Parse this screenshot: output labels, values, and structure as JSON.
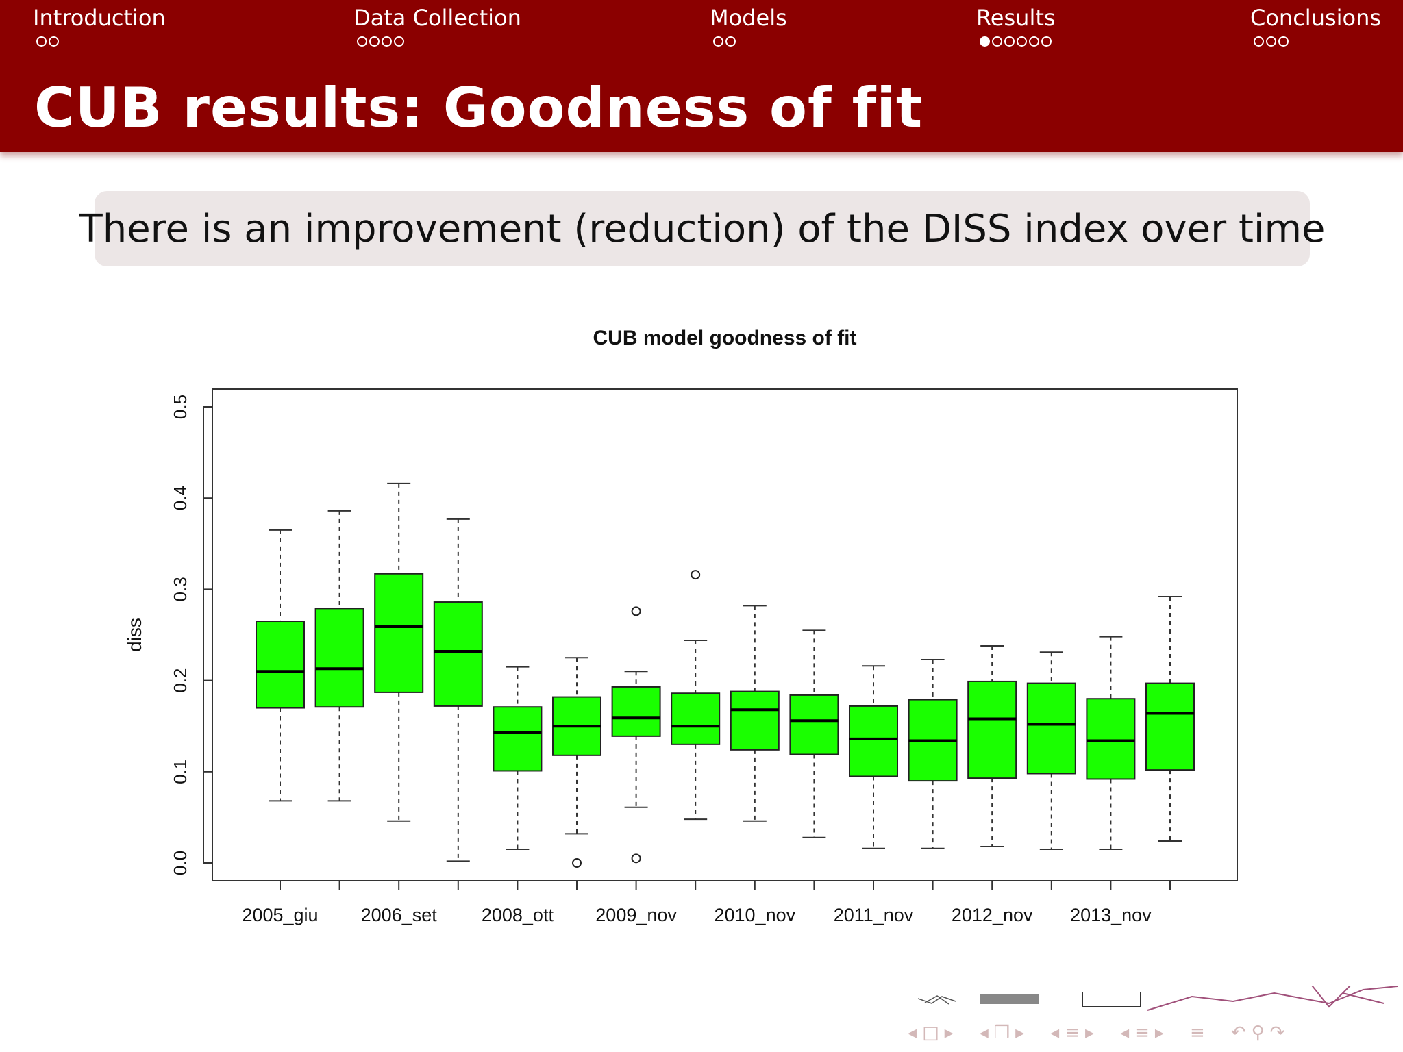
{
  "header": {
    "sections": [
      {
        "label": "Introduction",
        "dots": 2,
        "current": -1
      },
      {
        "label": "Data Collection",
        "dots": 4,
        "current": -1
      },
      {
        "label": "Models",
        "dots": 2,
        "current": -1
      },
      {
        "label": "Results",
        "dots": 6,
        "current": 0
      },
      {
        "label": "Conclusions",
        "dots": 3,
        "current": -1
      }
    ],
    "title": "CUB results: Goodness of fit"
  },
  "callout": {
    "text": "There is an improvement (reduction) of the DISS index over time"
  },
  "colors": {
    "header_bg": "#8b0000",
    "box_fill": "#1aff00",
    "callout_bg": "#ece6e6"
  },
  "chart_data": {
    "type": "boxplot",
    "title": "CUB model goodness of fit",
    "xlabel": "",
    "ylabel": "diss",
    "ylim": [
      0.0,
      0.5
    ],
    "yticks": [
      "0.0",
      "0.1",
      "0.2",
      "0.3",
      "0.4",
      "0.5"
    ],
    "categories": [
      "2005_giu",
      "",
      "2006_set",
      "",
      "2008_ott",
      "",
      "2009_nov",
      "",
      "2010_nov",
      "",
      "2011_nov",
      "",
      "2012_nov",
      "",
      "2013_nov",
      ""
    ],
    "boxes": [
      {
        "min": 0.068,
        "q1": 0.17,
        "median": 0.21,
        "q3": 0.265,
        "max": 0.365,
        "outliers": []
      },
      {
        "min": 0.068,
        "q1": 0.171,
        "median": 0.213,
        "q3": 0.279,
        "max": 0.386,
        "outliers": []
      },
      {
        "min": 0.046,
        "q1": 0.187,
        "median": 0.259,
        "q3": 0.317,
        "max": 0.416,
        "outliers": []
      },
      {
        "min": 0.002,
        "q1": 0.172,
        "median": 0.232,
        "q3": 0.286,
        "max": 0.377,
        "outliers": []
      },
      {
        "min": 0.015,
        "q1": 0.101,
        "median": 0.143,
        "q3": 0.171,
        "max": 0.215,
        "outliers": []
      },
      {
        "min": 0.032,
        "q1": 0.118,
        "median": 0.15,
        "q3": 0.182,
        "max": 0.225,
        "outliers": [
          0.0
        ]
      },
      {
        "min": 0.061,
        "q1": 0.139,
        "median": 0.159,
        "q3": 0.193,
        "max": 0.21,
        "outliers": [
          0.276,
          0.005
        ]
      },
      {
        "min": 0.048,
        "q1": 0.13,
        "median": 0.15,
        "q3": 0.186,
        "max": 0.244,
        "outliers": [
          0.316
        ]
      },
      {
        "min": 0.046,
        "q1": 0.124,
        "median": 0.168,
        "q3": 0.188,
        "max": 0.282,
        "outliers": []
      },
      {
        "min": 0.028,
        "q1": 0.119,
        "median": 0.156,
        "q3": 0.184,
        "max": 0.255,
        "outliers": []
      },
      {
        "min": 0.016,
        "q1": 0.095,
        "median": 0.136,
        "q3": 0.172,
        "max": 0.216,
        "outliers": []
      },
      {
        "min": 0.016,
        "q1": 0.09,
        "median": 0.134,
        "q3": 0.179,
        "max": 0.223,
        "outliers": []
      },
      {
        "min": 0.018,
        "q1": 0.093,
        "median": 0.158,
        "q3": 0.199,
        "max": 0.238,
        "outliers": []
      },
      {
        "min": 0.015,
        "q1": 0.098,
        "median": 0.152,
        "q3": 0.197,
        "max": 0.231,
        "outliers": []
      },
      {
        "min": 0.015,
        "q1": 0.092,
        "median": 0.134,
        "q3": 0.18,
        "max": 0.248,
        "outliers": []
      },
      {
        "min": 0.024,
        "q1": 0.102,
        "median": 0.164,
        "q3": 0.197,
        "max": 0.292,
        "outliers": []
      }
    ],
    "grid": false
  }
}
